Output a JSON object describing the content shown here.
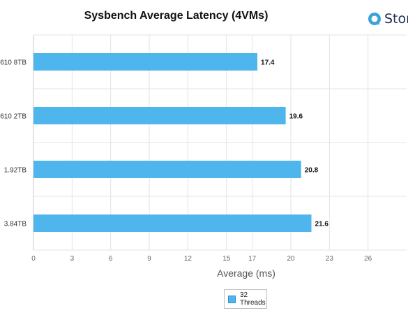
{
  "brand": {
    "name": "Stor",
    "icon": "storagereview-logo-icon",
    "color": "#3aa3d9"
  },
  "legend": {
    "label": "32 Threads"
  },
  "chart_data": {
    "type": "bar",
    "orientation": "horizontal",
    "title": "Sysbench Average Latency (4VMs)",
    "xlabel": "Average (ms)",
    "ylabel": "",
    "categories": [
      "610 8TB",
      "610 2TB",
      "1.92TB",
      "3.84TB"
    ],
    "series": [
      {
        "name": "32 Threads",
        "values": [
          17.4,
          19.6,
          20.8,
          21.6
        ],
        "color": "#4eb6ec"
      }
    ],
    "xticks": [
      0,
      3,
      6,
      9,
      12,
      15,
      17,
      20,
      23,
      26
    ],
    "xlim": [
      0,
      29
    ],
    "grid": true,
    "legend_position": "bottom"
  }
}
